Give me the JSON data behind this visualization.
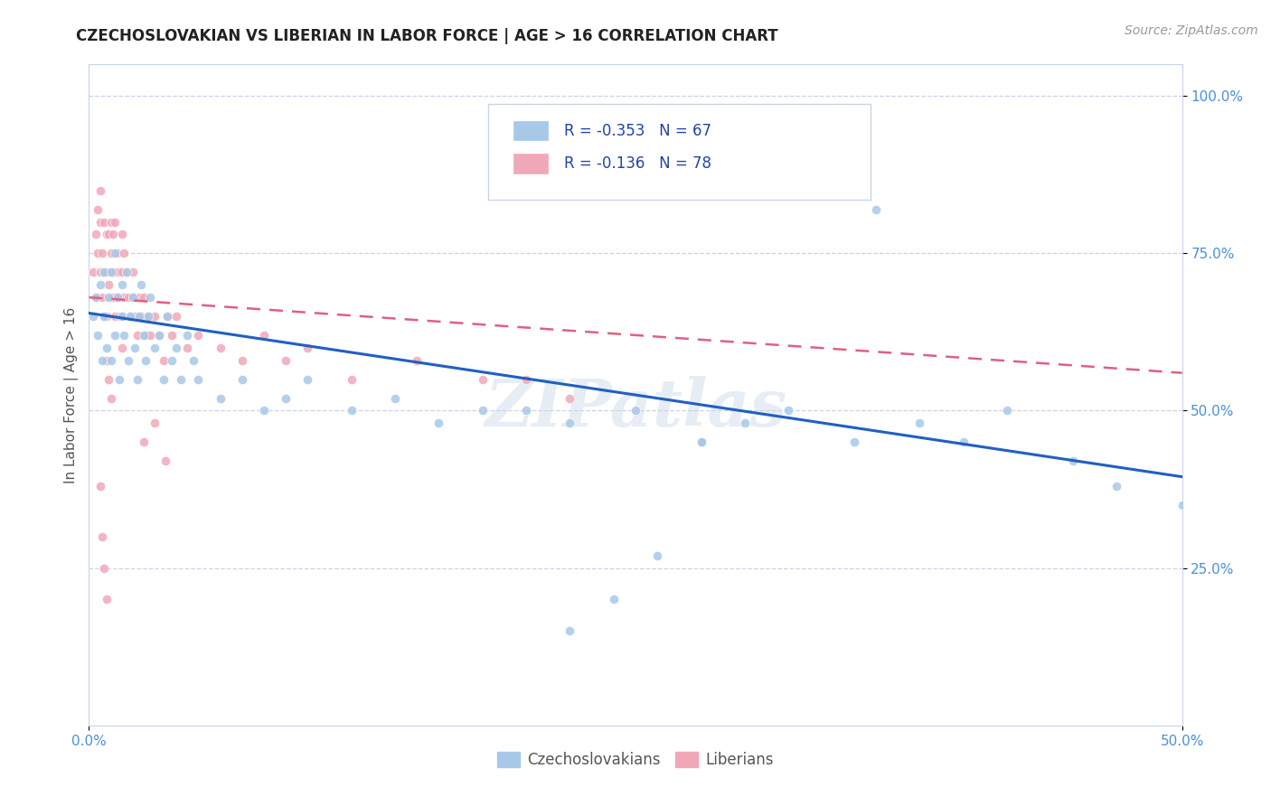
{
  "title": "CZECHOSLOVAKIAN VS LIBERIAN IN LABOR FORCE | AGE > 16 CORRELATION CHART",
  "source": "Source: ZipAtlas.com",
  "ylabel": "In Labor Force | Age > 16",
  "bottom_legend": [
    "Czechoslovakians",
    "Liberians"
  ],
  "background_color": "#ffffff",
  "grid_color": "#c8d4e8",
  "czechs_scatter_color": "#a8c8e8",
  "liberian_scatter_color": "#f0a8b8",
  "czech_trend_color": "#2060c0",
  "liberian_trend_color": "#e06080",
  "watermark_color": "#c8d8e8",
  "xlim": [
    0.0,
    0.5
  ],
  "ylim": [
    0.0,
    1.05
  ],
  "czech_R": -0.353,
  "czech_N": 67,
  "liberian_R": -0.136,
  "liberian_N": 78,
  "czechs_x": [
    0.002,
    0.003,
    0.004,
    0.005,
    0.006,
    0.007,
    0.007,
    0.008,
    0.009,
    0.01,
    0.01,
    0.012,
    0.012,
    0.013,
    0.014,
    0.015,
    0.015,
    0.016,
    0.017,
    0.018,
    0.019,
    0.02,
    0.021,
    0.022,
    0.023,
    0.024,
    0.025,
    0.026,
    0.027,
    0.028,
    0.03,
    0.032,
    0.034,
    0.036,
    0.038,
    0.04,
    0.042,
    0.045,
    0.048,
    0.05,
    0.06,
    0.07,
    0.08,
    0.09,
    0.1,
    0.12,
    0.14,
    0.16,
    0.18,
    0.2,
    0.22,
    0.25,
    0.28,
    0.3,
    0.35,
    0.38,
    0.4,
    0.42,
    0.45,
    0.47,
    0.5,
    0.36,
    0.32,
    0.28,
    0.26,
    0.24,
    0.22
  ],
  "czechs_y": [
    0.65,
    0.68,
    0.62,
    0.7,
    0.58,
    0.72,
    0.65,
    0.6,
    0.68,
    0.72,
    0.58,
    0.75,
    0.62,
    0.68,
    0.55,
    0.7,
    0.65,
    0.62,
    0.72,
    0.58,
    0.65,
    0.68,
    0.6,
    0.55,
    0.65,
    0.7,
    0.62,
    0.58,
    0.65,
    0.68,
    0.6,
    0.62,
    0.55,
    0.65,
    0.58,
    0.6,
    0.55,
    0.62,
    0.58,
    0.55,
    0.52,
    0.55,
    0.5,
    0.52,
    0.55,
    0.5,
    0.52,
    0.48,
    0.5,
    0.5,
    0.48,
    0.5,
    0.45,
    0.48,
    0.45,
    0.48,
    0.45,
    0.5,
    0.42,
    0.38,
    0.35,
    0.82,
    0.5,
    0.45,
    0.27,
    0.2,
    0.15
  ],
  "liberians_x": [
    0.002,
    0.003,
    0.003,
    0.004,
    0.004,
    0.005,
    0.005,
    0.005,
    0.006,
    0.006,
    0.007,
    0.007,
    0.007,
    0.008,
    0.008,
    0.008,
    0.009,
    0.009,
    0.01,
    0.01,
    0.01,
    0.01,
    0.011,
    0.011,
    0.012,
    0.012,
    0.012,
    0.013,
    0.013,
    0.014,
    0.014,
    0.015,
    0.015,
    0.015,
    0.016,
    0.016,
    0.017,
    0.018,
    0.019,
    0.02,
    0.02,
    0.021,
    0.022,
    0.023,
    0.024,
    0.025,
    0.026,
    0.027,
    0.028,
    0.03,
    0.032,
    0.034,
    0.036,
    0.038,
    0.04,
    0.045,
    0.05,
    0.06,
    0.07,
    0.08,
    0.09,
    0.1,
    0.12,
    0.15,
    0.18,
    0.2,
    0.22,
    0.025,
    0.03,
    0.035,
    0.008,
    0.009,
    0.01,
    0.015,
    0.005,
    0.006,
    0.007,
    0.008
  ],
  "liberians_y": [
    0.72,
    0.78,
    0.68,
    0.82,
    0.75,
    0.8,
    0.72,
    0.85,
    0.75,
    0.68,
    0.8,
    0.72,
    0.65,
    0.78,
    0.72,
    0.65,
    0.78,
    0.7,
    0.8,
    0.75,
    0.68,
    0.72,
    0.78,
    0.68,
    0.8,
    0.72,
    0.65,
    0.75,
    0.68,
    0.72,
    0.65,
    0.78,
    0.72,
    0.65,
    0.75,
    0.68,
    0.72,
    0.68,
    0.65,
    0.72,
    0.68,
    0.65,
    0.62,
    0.68,
    0.65,
    0.68,
    0.62,
    0.65,
    0.62,
    0.65,
    0.62,
    0.58,
    0.65,
    0.62,
    0.65,
    0.6,
    0.62,
    0.6,
    0.58,
    0.62,
    0.58,
    0.6,
    0.55,
    0.58,
    0.55,
    0.55,
    0.52,
    0.45,
    0.48,
    0.42,
    0.58,
    0.55,
    0.52,
    0.6,
    0.38,
    0.3,
    0.25,
    0.2
  ]
}
